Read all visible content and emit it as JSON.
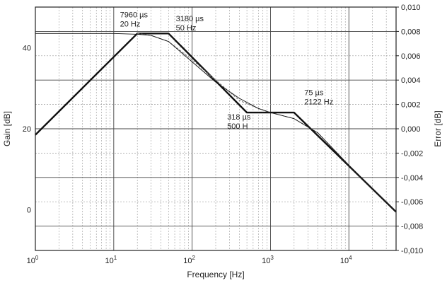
{
  "chart_data": {
    "type": "line",
    "xlabel": "Frequency [Hz]",
    "ylabel": "Gain [dB]",
    "y2label": "Error [dB]",
    "x_scale": "log",
    "xlim": [
      1,
      40000
    ],
    "ylim": [
      -10,
      50
    ],
    "y2lim": [
      -0.01,
      0.01
    ],
    "grid": true,
    "x_ticks": [
      {
        "value": 1,
        "base": "10",
        "exp": "0"
      },
      {
        "value": 10,
        "base": "10",
        "exp": "1"
      },
      {
        "value": 100,
        "base": "10",
        "exp": "2"
      },
      {
        "value": 1000,
        "base": "10",
        "exp": "3"
      },
      {
        "value": 10000,
        "base": "10",
        "exp": "4"
      }
    ],
    "y_ticks": [
      {
        "value": 0,
        "label": "0"
      },
      {
        "value": 20,
        "label": "20"
      },
      {
        "value": 40,
        "label": "40"
      }
    ],
    "y2_ticks": [
      {
        "value": 0.01,
        "label": "0,010"
      },
      {
        "value": 0.008,
        "label": "0,008"
      },
      {
        "value": 0.006,
        "label": "0,006"
      },
      {
        "value": 0.004,
        "label": "0,004"
      },
      {
        "value": 0.002,
        "label": "0,002"
      },
      {
        "value": 0.0,
        "label": "0,000"
      },
      {
        "value": -0.002,
        "label": "-0,002"
      },
      {
        "value": -0.004,
        "label": "-0,004"
      },
      {
        "value": -0.006,
        "label": "-0,006"
      },
      {
        "value": -0.008,
        "label": "-0,008"
      },
      {
        "value": -0.01,
        "label": "-0,010"
      }
    ],
    "series": [
      {
        "role": "asymptote",
        "color": "#111111",
        "points": [
          [
            1,
            18.5
          ],
          [
            20,
            43.5
          ],
          [
            50,
            43.5
          ],
          [
            500,
            24
          ],
          [
            2000,
            24
          ],
          [
            40000,
            -0.5
          ]
        ]
      },
      {
        "role": "response",
        "color": "#777777",
        "points": [
          [
            20,
            43.5
          ],
          [
            30,
            43
          ],
          [
            50,
            41.5
          ],
          [
            100,
            37
          ],
          [
            200,
            32
          ],
          [
            400,
            27
          ],
          [
            700,
            25
          ],
          [
            1000,
            24
          ],
          [
            2000,
            22.5
          ],
          [
            4000,
            19
          ],
          [
            10000,
            11
          ],
          [
            40000,
            -0.5
          ]
        ]
      },
      {
        "role": "error",
        "color": "#111111",
        "points": [
          [
            1,
            43.5
          ],
          [
            10,
            43.5
          ],
          [
            20,
            43.3
          ],
          [
            30,
            43
          ],
          [
            50,
            41.5
          ],
          [
            100,
            36.5
          ],
          [
            200,
            31.5
          ],
          [
            400,
            27.5
          ],
          [
            700,
            25
          ],
          [
            1000,
            24
          ],
          [
            2000,
            22.5
          ],
          [
            4000,
            19
          ],
          [
            10000,
            11
          ],
          [
            40000,
            -0.5
          ]
        ]
      }
    ],
    "annotations": [
      {
        "lines": [
          "7960 µs",
          "20 Hz"
        ],
        "x": 12,
        "y": 47.5
      },
      {
        "lines": [
          "3180 µs",
          "50 Hz"
        ],
        "x": 62,
        "y": 46.5
      },
      {
        "lines": [
          "318 µs",
          "500 H"
        ],
        "x": 280,
        "y": 22.3
      },
      {
        "lines": [
          "75 µs",
          "2122 Hz"
        ],
        "x": 2700,
        "y": 28.3
      }
    ]
  }
}
